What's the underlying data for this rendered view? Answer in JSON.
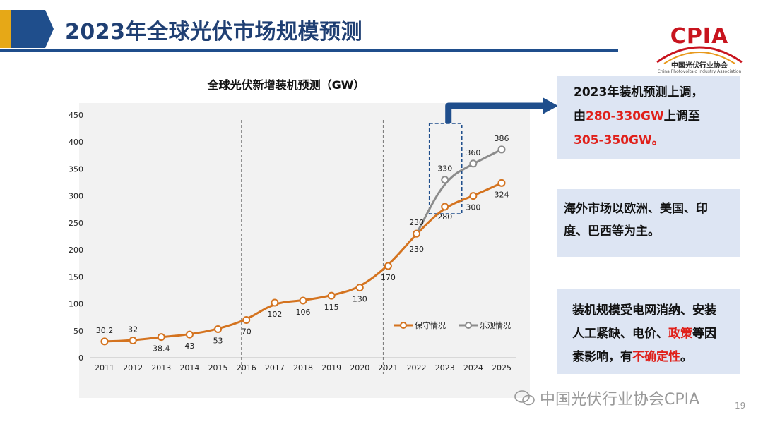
{
  "header": {
    "title": "2023年全球光伏市场规模预测"
  },
  "logo": {
    "text": "CPIA",
    "cn": "中国光伏行业协会",
    "en": "China Photovoltaic Industry Association"
  },
  "notes": {
    "note1": {
      "line1": "2023年装机预测上调，",
      "line2_pre": "由",
      "line2_red": "280-330GW",
      "line2_post": "上调至",
      "line3": "305-350GW。"
    },
    "note2": {
      "line1": "海外市场以欧洲、美国、印",
      "line2": "度、巴西等为主。"
    },
    "note3": {
      "line1": "装机规模受电网消纳、安装",
      "line2_pre": "人工紧缺、电价、",
      "line2_red": "政策",
      "line2_post": "等因",
      "line3_pre": "素影响，有",
      "line3_red": "不确定性",
      "line3_post": "。"
    }
  },
  "watermark": "中国光伏行业协会CPIA",
  "page_number": "19",
  "colors": {
    "conservative": "#d4731f",
    "optimistic": "#8c8c8c",
    "brand_blue": "#1f4e8c",
    "accent_red": "#e0201a"
  },
  "chart_data": {
    "type": "line",
    "title": "全球光伏新增装机预测（GW）",
    "categories": [
      "2011",
      "2012",
      "2013",
      "2014",
      "2015",
      "2016",
      "2017",
      "2018",
      "2019",
      "2020",
      "2021",
      "2022",
      "2023",
      "2024",
      "2025"
    ],
    "ylim": [
      0,
      450
    ],
    "yticks": [
      0,
      50,
      100,
      150,
      200,
      250,
      300,
      350,
      400,
      450
    ],
    "series": [
      {
        "name": "保守情况",
        "values": [
          30.2,
          32,
          38.4,
          43,
          53,
          70,
          102,
          106,
          115,
          130,
          170,
          230,
          280,
          300,
          324
        ],
        "labels": [
          "30.2",
          "32",
          "38.4",
          "43",
          "53",
          "70",
          "102",
          "106",
          "115",
          "130",
          "170",
          "230",
          "280",
          "300",
          "324"
        ]
      },
      {
        "name": "乐观情况",
        "values": [
          null,
          null,
          null,
          null,
          null,
          null,
          null,
          null,
          null,
          null,
          null,
          230,
          330,
          360,
          386
        ],
        "labels": [
          "",
          "",
          "",
          "",
          "",
          "",
          "",
          "",
          "",
          "",
          "",
          "230",
          "330",
          "360",
          "386"
        ]
      }
    ],
    "dividers": [
      "2016",
      "2021"
    ],
    "highlight": "2023"
  }
}
